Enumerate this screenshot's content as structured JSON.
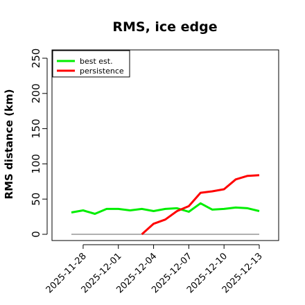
{
  "chart_data": {
    "type": "line",
    "title": "RMS, ice edge",
    "xlabel": "",
    "ylabel": "RMS distance (km)",
    "ylim": [
      0,
      250
    ],
    "yticks": [
      0,
      50,
      100,
      150,
      200,
      250
    ],
    "xticks": [
      "2025-11-28",
      "2025-12-01",
      "2025-12-04",
      "2025-12-07",
      "2025-12-10",
      "2025-12-13"
    ],
    "x": [
      "2025-11-27",
      "2025-11-28",
      "2025-11-29",
      "2025-11-30",
      "2025-12-01",
      "2025-12-02",
      "2025-12-03",
      "2025-12-04",
      "2025-12-05",
      "2025-12-06",
      "2025-12-07",
      "2025-12-08",
      "2025-12-09",
      "2025-12-10",
      "2025-12-11",
      "2025-12-12",
      "2025-12-13"
    ],
    "legend_position": "top-left",
    "grid": false,
    "series": [
      {
        "name": "best est.",
        "color": "#00ee00",
        "values": [
          31,
          34,
          29,
          36,
          36,
          34,
          36,
          33,
          36,
          37,
          32,
          44,
          35,
          36,
          38,
          37,
          33
        ]
      },
      {
        "name": "persistence",
        "color": "#ff0000",
        "values": [
          null,
          null,
          null,
          null,
          null,
          null,
          0,
          15,
          21,
          33,
          40,
          59,
          61,
          64,
          78,
          83,
          84
        ]
      }
    ],
    "reference_line": {
      "y": 0,
      "color": "#808080"
    }
  }
}
